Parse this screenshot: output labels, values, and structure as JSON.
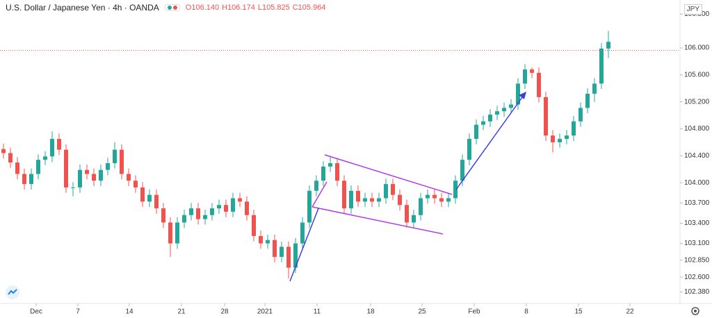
{
  "chart_data": {
    "type": "candlestick",
    "title": "U.S. Dollar / Japanese Yen · 4h · OANDA",
    "currency": "JPY",
    "header_ohlc": [
      {
        "value": 106.14,
        "label": "O106.140"
      },
      {
        "value": 106.174,
        "label": "H106.174"
      },
      {
        "value": 105.825,
        "label": "L105.825"
      },
      {
        "value": 105.964,
        "label": "C105.964"
      }
    ],
    "up_color": "#26a69a",
    "down_color": "#ef5350",
    "ylim": [
      102.21,
      106.71
    ],
    "yticks": [
      {
        "value": 106.5,
        "label": "106.500"
      },
      {
        "value": 106,
        "label": "106.000"
      },
      {
        "value": 105.6,
        "label": "105.600"
      },
      {
        "value": 105.2,
        "label": "105.200"
      },
      {
        "value": 104.8,
        "label": "104.800"
      },
      {
        "value": 104.4,
        "label": "104.400"
      },
      {
        "value": 104,
        "label": "104.000"
      },
      {
        "value": 103.7,
        "label": "103.700"
      },
      {
        "value": 103.4,
        "label": "103.400"
      },
      {
        "value": 103.1,
        "label": "103.100"
      },
      {
        "value": 102.85,
        "label": "102.850"
      },
      {
        "value": 102.6,
        "label": "102.600"
      },
      {
        "value": 102.38,
        "label": "102.380"
      }
    ],
    "xlim": [
      -0.5,
      97
    ],
    "xticks": [
      {
        "value": 4.7,
        "label": "Dec"
      },
      {
        "value": 10.7,
        "label": "7"
      },
      {
        "value": 18.1,
        "label": "14"
      },
      {
        "value": 25.6,
        "label": "21"
      },
      {
        "value": 31.8,
        "label": "28"
      },
      {
        "value": 37.6,
        "label": "2021"
      },
      {
        "value": 45.1,
        "label": "11"
      },
      {
        "value": 52.8,
        "label": "18"
      },
      {
        "value": 60.2,
        "label": "25"
      },
      {
        "value": 67.7,
        "label": "Feb"
      },
      {
        "value": 75.2,
        "label": "8"
      },
      {
        "value": 82.7,
        "label": "15"
      },
      {
        "value": 90.1,
        "label": "22"
      }
    ],
    "ohlc": [
      [
        104.5,
        104.58,
        104.36,
        104.44
      ],
      [
        104.44,
        104.52,
        104.22,
        104.3
      ],
      [
        104.3,
        104.38,
        104.05,
        104.13
      ],
      [
        104.13,
        104.21,
        103.9,
        103.98
      ],
      [
        103.98,
        104.21,
        103.9,
        104.13
      ],
      [
        104.13,
        104.42,
        104.05,
        104.34
      ],
      [
        104.34,
        104.47,
        104.26,
        104.39
      ],
      [
        104.39,
        104.76,
        104.31,
        104.65
      ],
      [
        104.65,
        104.73,
        104.41,
        104.49
      ],
      [
        104.49,
        104.57,
        103.85,
        103.93
      ],
      [
        103.93,
        104.01,
        103.8,
        103.93
      ],
      [
        103.93,
        104.27,
        103.85,
        104.19
      ],
      [
        104.19,
        104.27,
        104.05,
        104.13
      ],
      [
        104.13,
        104.21,
        103.95,
        104.03
      ],
      [
        104.03,
        104.27,
        103.95,
        104.19
      ],
      [
        104.19,
        104.37,
        104.11,
        104.29
      ],
      [
        104.29,
        104.6,
        104.21,
        104.49
      ],
      [
        104.49,
        104.57,
        104.05,
        104.13
      ],
      [
        104.13,
        104.21,
        103.95,
        104.03
      ],
      [
        104.03,
        104.11,
        103.85,
        103.93
      ],
      [
        103.93,
        104.01,
        103.64,
        103.72
      ],
      [
        103.72,
        103.9,
        103.64,
        103.82
      ],
      [
        103.82,
        103.9,
        103.54,
        103.62
      ],
      [
        103.62,
        103.7,
        103.33,
        103.41
      ],
      [
        103.41,
        103.49,
        102.9,
        103.1
      ],
      [
        103.1,
        103.49,
        103.02,
        103.41
      ],
      [
        103.41,
        103.6,
        103.33,
        103.52
      ],
      [
        103.52,
        103.7,
        103.44,
        103.62
      ],
      [
        103.62,
        103.7,
        103.38,
        103.46
      ],
      [
        103.46,
        103.6,
        103.38,
        103.52
      ],
      [
        103.52,
        103.7,
        103.44,
        103.62
      ],
      [
        103.62,
        103.75,
        103.54,
        103.67
      ],
      [
        103.67,
        103.75,
        103.49,
        103.57
      ],
      [
        103.57,
        103.85,
        103.49,
        103.77
      ],
      [
        103.77,
        103.85,
        103.64,
        103.72
      ],
      [
        103.72,
        103.8,
        103.44,
        103.52
      ],
      [
        103.52,
        103.6,
        103.13,
        103.21
      ],
      [
        103.21,
        103.29,
        103.02,
        103.1
      ],
      [
        103.1,
        103.23,
        103.02,
        103.15
      ],
      [
        103.15,
        103.23,
        102.82,
        102.9
      ],
      [
        102.9,
        103.13,
        102.82,
        103.05
      ],
      [
        103.05,
        103.13,
        102.58,
        102.74
      ],
      [
        102.74,
        103.18,
        102.66,
        103.1
      ],
      [
        103.1,
        103.49,
        103.02,
        103.41
      ],
      [
        103.41,
        103.96,
        103.33,
        103.88
      ],
      [
        103.88,
        104.11,
        103.8,
        104.03
      ],
      [
        104.03,
        104.32,
        103.95,
        104.24
      ],
      [
        104.24,
        104.4,
        104.16,
        104.29
      ],
      [
        104.29,
        104.37,
        103.95,
        104.03
      ],
      [
        104.03,
        104.11,
        103.54,
        103.62
      ],
      [
        103.62,
        103.96,
        103.54,
        103.88
      ],
      [
        103.88,
        103.96,
        103.64,
        103.72
      ],
      [
        103.72,
        103.85,
        103.64,
        103.77
      ],
      [
        103.77,
        103.85,
        103.64,
        103.72
      ],
      [
        103.72,
        103.85,
        103.64,
        103.77
      ],
      [
        103.77,
        104.06,
        103.69,
        103.98
      ],
      [
        103.98,
        104.06,
        103.74,
        103.82
      ],
      [
        103.82,
        103.9,
        103.59,
        103.67
      ],
      [
        103.67,
        103.75,
        103.33,
        103.41
      ],
      [
        103.41,
        103.6,
        103.33,
        103.52
      ],
      [
        103.52,
        103.85,
        103.44,
        103.77
      ],
      [
        103.77,
        103.9,
        103.69,
        103.82
      ],
      [
        103.82,
        103.9,
        103.69,
        103.77
      ],
      [
        103.77,
        103.85,
        103.64,
        103.72
      ],
      [
        103.72,
        103.85,
        103.64,
        103.77
      ],
      [
        103.77,
        104.11,
        103.69,
        104.03
      ],
      [
        104.03,
        104.42,
        103.95,
        104.34
      ],
      [
        104.34,
        104.73,
        104.26,
        104.65
      ],
      [
        104.65,
        104.94,
        104.57,
        104.86
      ],
      [
        104.86,
        104.99,
        104.78,
        104.91
      ],
      [
        104.91,
        105.09,
        104.83,
        105.01
      ],
      [
        105.01,
        105.14,
        104.93,
        105.06
      ],
      [
        105.06,
        105.19,
        104.98,
        105.11
      ],
      [
        105.11,
        105.24,
        105.03,
        105.16
      ],
      [
        105.16,
        105.55,
        105.08,
        105.47
      ],
      [
        105.47,
        105.76,
        105.39,
        105.68
      ],
      [
        105.68,
        105.71,
        105.55,
        105.63
      ],
      [
        105.63,
        105.71,
        105.19,
        105.27
      ],
      [
        105.27,
        105.35,
        104.62,
        104.7
      ],
      [
        104.7,
        104.78,
        104.45,
        104.6
      ],
      [
        104.6,
        104.73,
        104.52,
        104.65
      ],
      [
        104.65,
        104.78,
        104.57,
        104.7
      ],
      [
        104.7,
        104.99,
        104.62,
        104.91
      ],
      [
        104.91,
        105.19,
        104.83,
        105.11
      ],
      [
        105.11,
        105.4,
        105.03,
        105.32
      ],
      [
        105.32,
        105.55,
        105.2,
        105.47
      ],
      [
        105.47,
        106.07,
        105.39,
        105.99
      ],
      [
        105.99,
        106.25,
        105.85,
        106.09
      ]
    ]
  }
}
